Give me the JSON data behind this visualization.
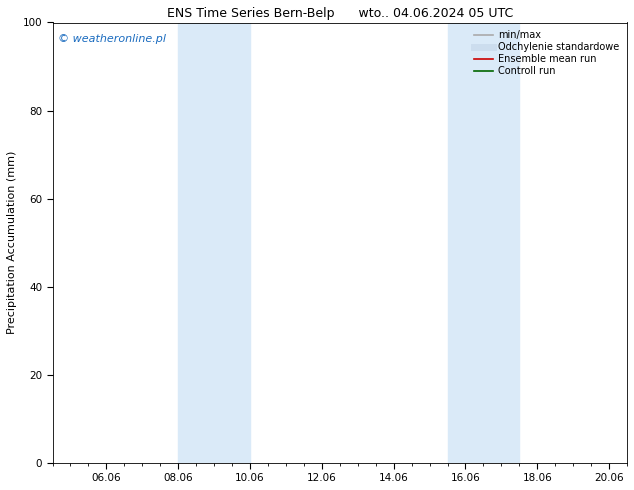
{
  "title": "ENS Time Series Bern-Belp      wto.. 04.06.2024 05 UTC",
  "ylabel": "Precipitation Accumulation (mm)",
  "ylim": [
    0,
    100
  ],
  "xlim": [
    4.5,
    20.5
  ],
  "xtick_positions": [
    6.0,
    8.0,
    10.0,
    12.0,
    14.0,
    16.0,
    18.0,
    20.0
  ],
  "xtick_labels": [
    "06.06",
    "08.06",
    "10.06",
    "12.06",
    "14.06",
    "16.06",
    "18.06",
    "20.06"
  ],
  "ytick_positions": [
    0,
    20,
    40,
    60,
    80,
    100
  ],
  "shaded_bands": [
    {
      "x_start": 8.0,
      "x_end": 10.0
    },
    {
      "x_start": 15.5,
      "x_end": 17.5
    }
  ],
  "band_color": "#daeaf8",
  "watermark_text": "© weatheronline.pl",
  "watermark_color": "#1a6bbf",
  "watermark_fontsize": 8,
  "legend_entries": [
    {
      "label": "min/max",
      "color": "#aaaaaa",
      "lw": 1.2,
      "type": "line"
    },
    {
      "label": "Odchylenie standardowe",
      "color": "#ccddee",
      "lw": 5,
      "type": "line"
    },
    {
      "label": "Ensemble mean run",
      "color": "#cc0000",
      "lw": 1.2,
      "type": "line"
    },
    {
      "label": "Controll run",
      "color": "#006600",
      "lw": 1.2,
      "type": "line"
    }
  ],
  "title_fontsize": 9,
  "axis_label_fontsize": 8,
  "tick_fontsize": 7.5,
  "legend_fontsize": 7,
  "background_color": "#ffffff"
}
